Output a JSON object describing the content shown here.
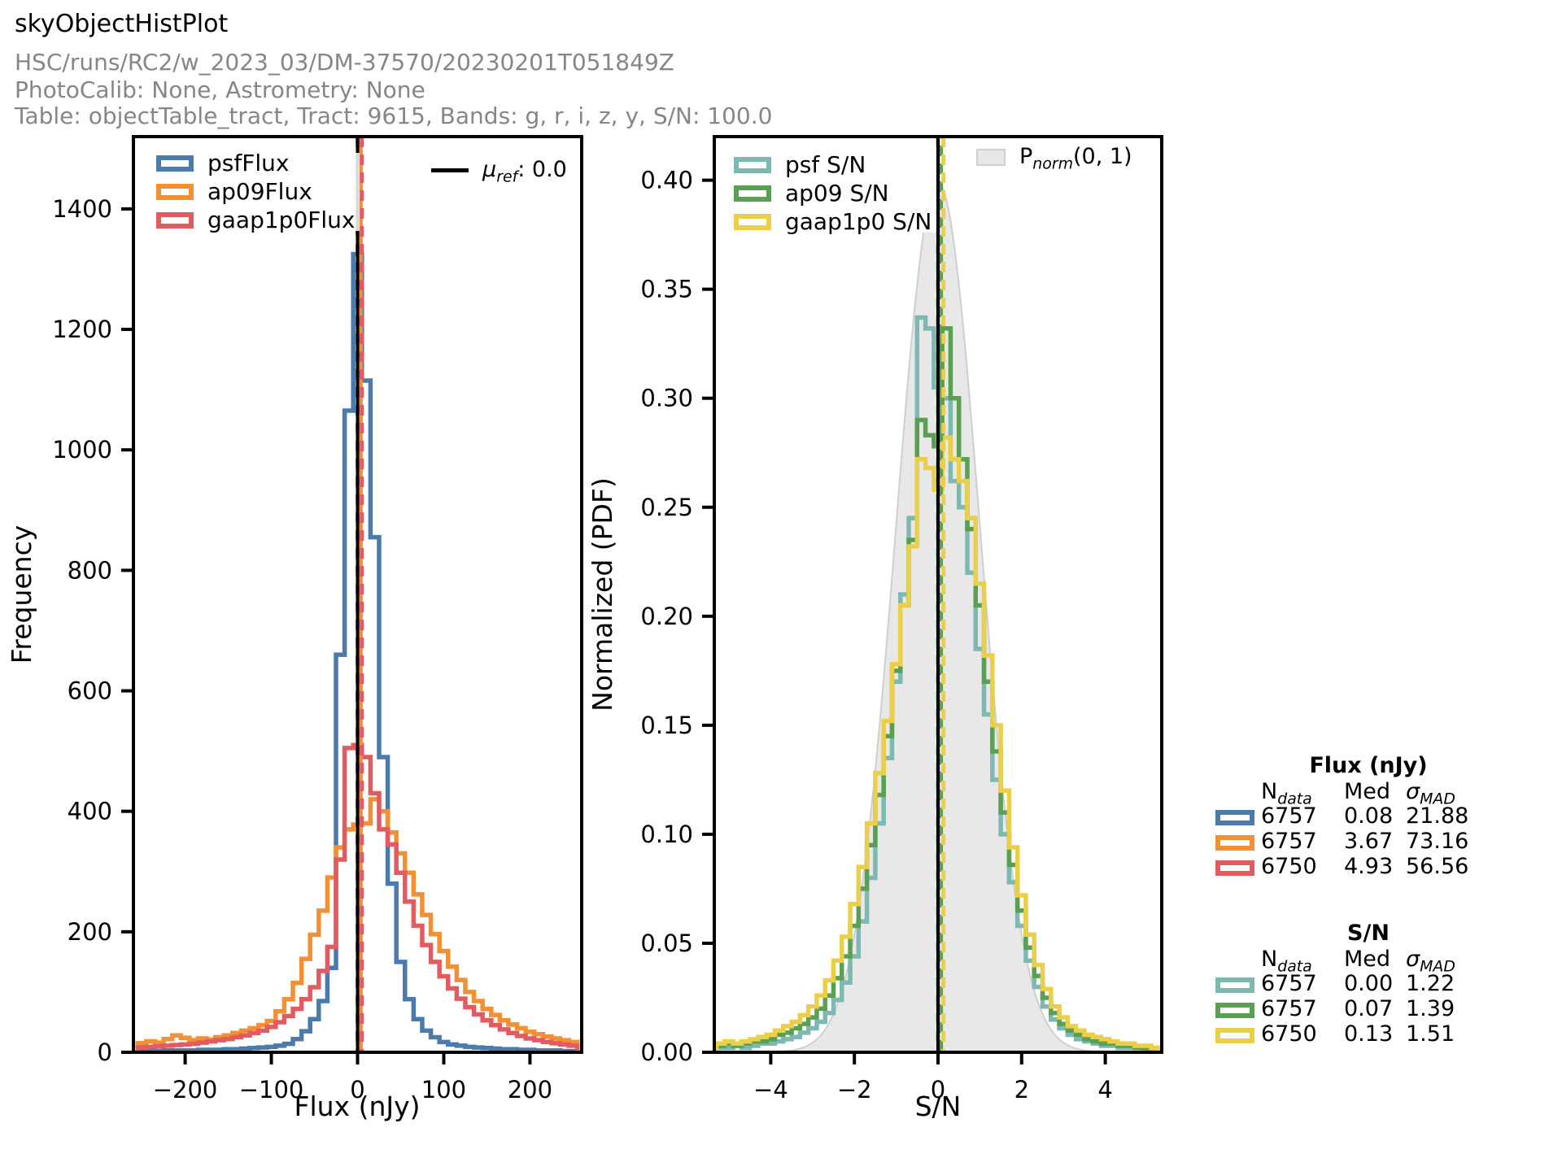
{
  "header": {
    "title": "skyObjectHistPlot",
    "run": "HSC/runs/RC2/w_2023_03/DM-37570/20230201T051849Z",
    "calib": "PhotoCalib: None, Astrometry: None",
    "table": "Table: objectTable_tract, Tract: 9615, Bands: g, r, i, z, y, S/N: 100.0"
  },
  "colors": {
    "blue": "#4a7bab",
    "orange": "#f39033",
    "red": "#e05c61",
    "teal": "#7db8b2",
    "green": "#5aa052",
    "yellow": "#eccf49",
    "norm_fill": "#e8e8e8",
    "norm_edge": "#cfcfcf",
    "ref_line": "#000000",
    "header_gray": "#868686"
  },
  "chart_data": [
    {
      "type": "bar",
      "subtype": "step-histogram",
      "xlabel": "Flux (nJy)",
      "ylabel": "Frequency",
      "xlim": [
        -260,
        260
      ],
      "ylim": [
        0,
        1520
      ],
      "grid": false,
      "legend_position": "upper left",
      "xticks": [
        -200,
        -100,
        0,
        100,
        200
      ],
      "xtick_labels": [
        "−200",
        "−100",
        "0",
        "100",
        "200"
      ],
      "yticks": [
        0,
        200,
        400,
        600,
        800,
        1000,
        1200,
        1400
      ],
      "ytick_labels": [
        "0",
        "200",
        "400",
        "600",
        "800",
        "1000",
        "1200",
        "1400"
      ],
      "bin_start": -255,
      "bin_width": 10,
      "series": [
        {
          "name": "psfFlux",
          "color": "#4a7bab",
          "values": [
            2,
            2,
            2,
            3,
            3,
            3,
            3,
            4,
            4,
            4,
            5,
            5,
            6,
            7,
            8,
            9,
            11,
            14,
            22,
            35,
            55,
            85,
            140,
            660,
            1065,
            1325,
            1115,
            855,
            490,
            280,
            150,
            88,
            55,
            36,
            25,
            17,
            13,
            11,
            9,
            8,
            7,
            6,
            5,
            5,
            4,
            4,
            3,
            3,
            3,
            2,
            2
          ]
        },
        {
          "name": "ap09Flux",
          "color": "#f39033",
          "values": [
            15,
            18,
            16,
            22,
            28,
            24,
            20,
            23,
            21,
            25,
            28,
            32,
            36,
            40,
            45,
            52,
            68,
            88,
            115,
            155,
            195,
            235,
            290,
            340,
            370,
            378,
            380,
            420,
            400,
            365,
            330,
            298,
            262,
            228,
            196,
            168,
            142,
            120,
            100,
            85,
            72,
            62,
            53,
            46,
            40,
            34,
            30,
            26,
            23,
            20,
            17
          ]
        },
        {
          "name": "gaap1p0Flux",
          "color": "#e05c61",
          "values": [
            8,
            9,
            10,
            11,
            12,
            13,
            14,
            16,
            18,
            20,
            22,
            25,
            28,
            32,
            36,
            42,
            50,
            60,
            72,
            88,
            108,
            135,
            175,
            320,
            505,
            510,
            490,
            430,
            370,
            345,
            298,
            250,
            210,
            178,
            150,
            126,
            106,
            89,
            75,
            63,
            53,
            45,
            38,
            32,
            27,
            23,
            20,
            17,
            15,
            13,
            11
          ]
        }
      ],
      "ref_line": {
        "x": 0.0,
        "color": "#000000",
        "symbol": "μ",
        "sub": "ref",
        "text": ": 0.0"
      },
      "median_lines": [
        {
          "x": 0.08,
          "color": "#4a7bab"
        },
        {
          "x": 3.67,
          "color": "#f39033"
        },
        {
          "x": 4.93,
          "color": "#e05c61"
        }
      ]
    },
    {
      "type": "bar",
      "subtype": "step-histogram",
      "xlabel": "S/N",
      "ylabel": "Normalized (PDF)",
      "xlim": [
        -5.35,
        5.35
      ],
      "ylim": [
        0,
        0.42
      ],
      "grid": false,
      "legend_position": "upper left",
      "xticks": [
        -4,
        -2,
        0,
        2,
        4
      ],
      "xtick_labels": [
        "−4",
        "−2",
        "0",
        "2",
        "4"
      ],
      "yticks": [
        0.0,
        0.05,
        0.1,
        0.15,
        0.2,
        0.25,
        0.3,
        0.35,
        0.4
      ],
      "ytick_labels": [
        "0.00",
        "0.05",
        "0.10",
        "0.15",
        "0.20",
        "0.25",
        "0.30",
        "0.35",
        "0.40"
      ],
      "bin_start": -5.3,
      "bin_width": 0.2,
      "series": [
        {
          "name": "psf S/N",
          "color": "#7db8b2",
          "values": [
            0.002,
            0.002,
            0.003,
            0.002,
            0.003,
            0.004,
            0.004,
            0.005,
            0.006,
            0.007,
            0.009,
            0.011,
            0.014,
            0.018,
            0.024,
            0.032,
            0.044,
            0.06,
            0.08,
            0.105,
            0.135,
            0.17,
            0.21,
            0.245,
            0.337,
            0.332,
            0.305,
            0.3,
            0.262,
            0.25,
            0.22,
            0.185,
            0.155,
            0.125,
            0.1,
            0.078,
            0.058,
            0.042,
            0.03,
            0.021,
            0.015,
            0.011,
            0.008,
            0.006,
            0.005,
            0.004,
            0.003,
            0.003,
            0.002,
            0.002,
            0.002,
            0.001,
            0.001
          ]
        },
        {
          "name": "ap09 S/N",
          "color": "#5aa052",
          "values": [
            0.003,
            0.004,
            0.003,
            0.004,
            0.005,
            0.005,
            0.006,
            0.008,
            0.009,
            0.011,
            0.013,
            0.016,
            0.02,
            0.026,
            0.034,
            0.044,
            0.058,
            0.075,
            0.095,
            0.118,
            0.145,
            0.175,
            0.205,
            0.235,
            0.29,
            0.283,
            0.278,
            0.332,
            0.3,
            0.272,
            0.24,
            0.205,
            0.17,
            0.138,
            0.11,
            0.086,
            0.065,
            0.048,
            0.035,
            0.025,
            0.018,
            0.013,
            0.01,
            0.008,
            0.006,
            0.005,
            0.004,
            0.004,
            0.003,
            0.003,
            0.002,
            0.002,
            0.002
          ]
        },
        {
          "name": "gaap1p0 S/N",
          "color": "#eccf49",
          "values": [
            0.004,
            0.005,
            0.004,
            0.005,
            0.006,
            0.007,
            0.008,
            0.01,
            0.012,
            0.014,
            0.017,
            0.021,
            0.026,
            0.033,
            0.042,
            0.053,
            0.068,
            0.085,
            0.105,
            0.128,
            0.152,
            0.178,
            0.205,
            0.232,
            0.272,
            0.268,
            0.258,
            0.282,
            0.272,
            0.262,
            0.245,
            0.215,
            0.182,
            0.15,
            0.12,
            0.094,
            0.072,
            0.054,
            0.04,
            0.029,
            0.021,
            0.016,
            0.012,
            0.01,
            0.008,
            0.007,
            0.006,
            0.005,
            0.004,
            0.004,
            0.003,
            0.003,
            0.002
          ]
        }
      ],
      "normal_curve": {
        "mean": 0,
        "sigma": 1,
        "fill": "#e8e8e8",
        "edge": "#cfcfcf",
        "symbol": "P",
        "sub": "norm",
        "args": "(0, 1)"
      },
      "ref_line": {
        "x": 0.0,
        "color": "#000000"
      },
      "median_lines": [
        {
          "x": 0.0,
          "color": "#7db8b2"
        },
        {
          "x": 0.07,
          "color": "#5aa052"
        },
        {
          "x": 0.13,
          "color": "#eccf49"
        }
      ]
    }
  ],
  "stats": {
    "col_headers": {
      "n": "N",
      "n_sub": "data",
      "med": "Med",
      "sigma": "σ",
      "sigma_sub": "MAD"
    },
    "flux": {
      "title": "Flux (nJy)",
      "rows": [
        {
          "color": "#4a7bab",
          "n": "6757",
          "med": "0.08",
          "sigma": "21.88"
        },
        {
          "color": "#f39033",
          "n": "6757",
          "med": "3.67",
          "sigma": "73.16"
        },
        {
          "color": "#e05c61",
          "n": "6750",
          "med": "4.93",
          "sigma": "56.56"
        }
      ]
    },
    "sn": {
      "title": "S/N",
      "rows": [
        {
          "color": "#7db8b2",
          "n": "6757",
          "med": "0.00",
          "sigma": "1.22"
        },
        {
          "color": "#5aa052",
          "n": "6757",
          "med": "0.07",
          "sigma": "1.39"
        },
        {
          "color": "#eccf49",
          "n": "6750",
          "med": "0.13",
          "sigma": "1.51"
        }
      ]
    }
  }
}
